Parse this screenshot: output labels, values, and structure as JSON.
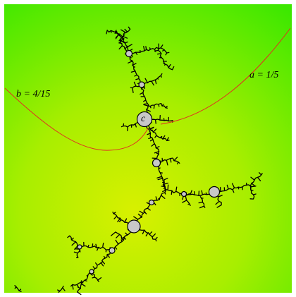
{
  "labels": {
    "ray_a": "a = 1/5",
    "ray_b": "b = 4/15",
    "point_c": "c"
  }
}
